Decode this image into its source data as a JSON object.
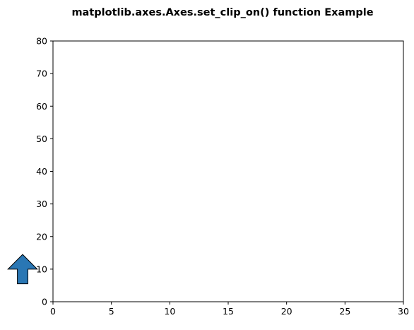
{
  "chart_data": {
    "type": "scatter",
    "title": "matplotlib.axes.Axes.set_clip_on() function Example",
    "xlabel": "",
    "ylabel": "",
    "xlim": [
      0,
      30
    ],
    "ylim": [
      0,
      80
    ],
    "xticks": [
      0,
      5,
      10,
      15,
      20,
      25,
      30
    ],
    "yticks": [
      0,
      10,
      20,
      30,
      40,
      50,
      60,
      70,
      80
    ],
    "grid": false,
    "annotations": [
      {
        "type": "arrow",
        "direction": "up",
        "clipped": false,
        "tail_xy": [
          -2.6,
          5.5
        ],
        "tip_xy": [
          -2.6,
          14.5
        ],
        "half_width": 0.45,
        "head_half_width": 1.25,
        "head_height": 4.5,
        "color": "#2a77b4",
        "edgecolor": "#000000"
      }
    ]
  }
}
